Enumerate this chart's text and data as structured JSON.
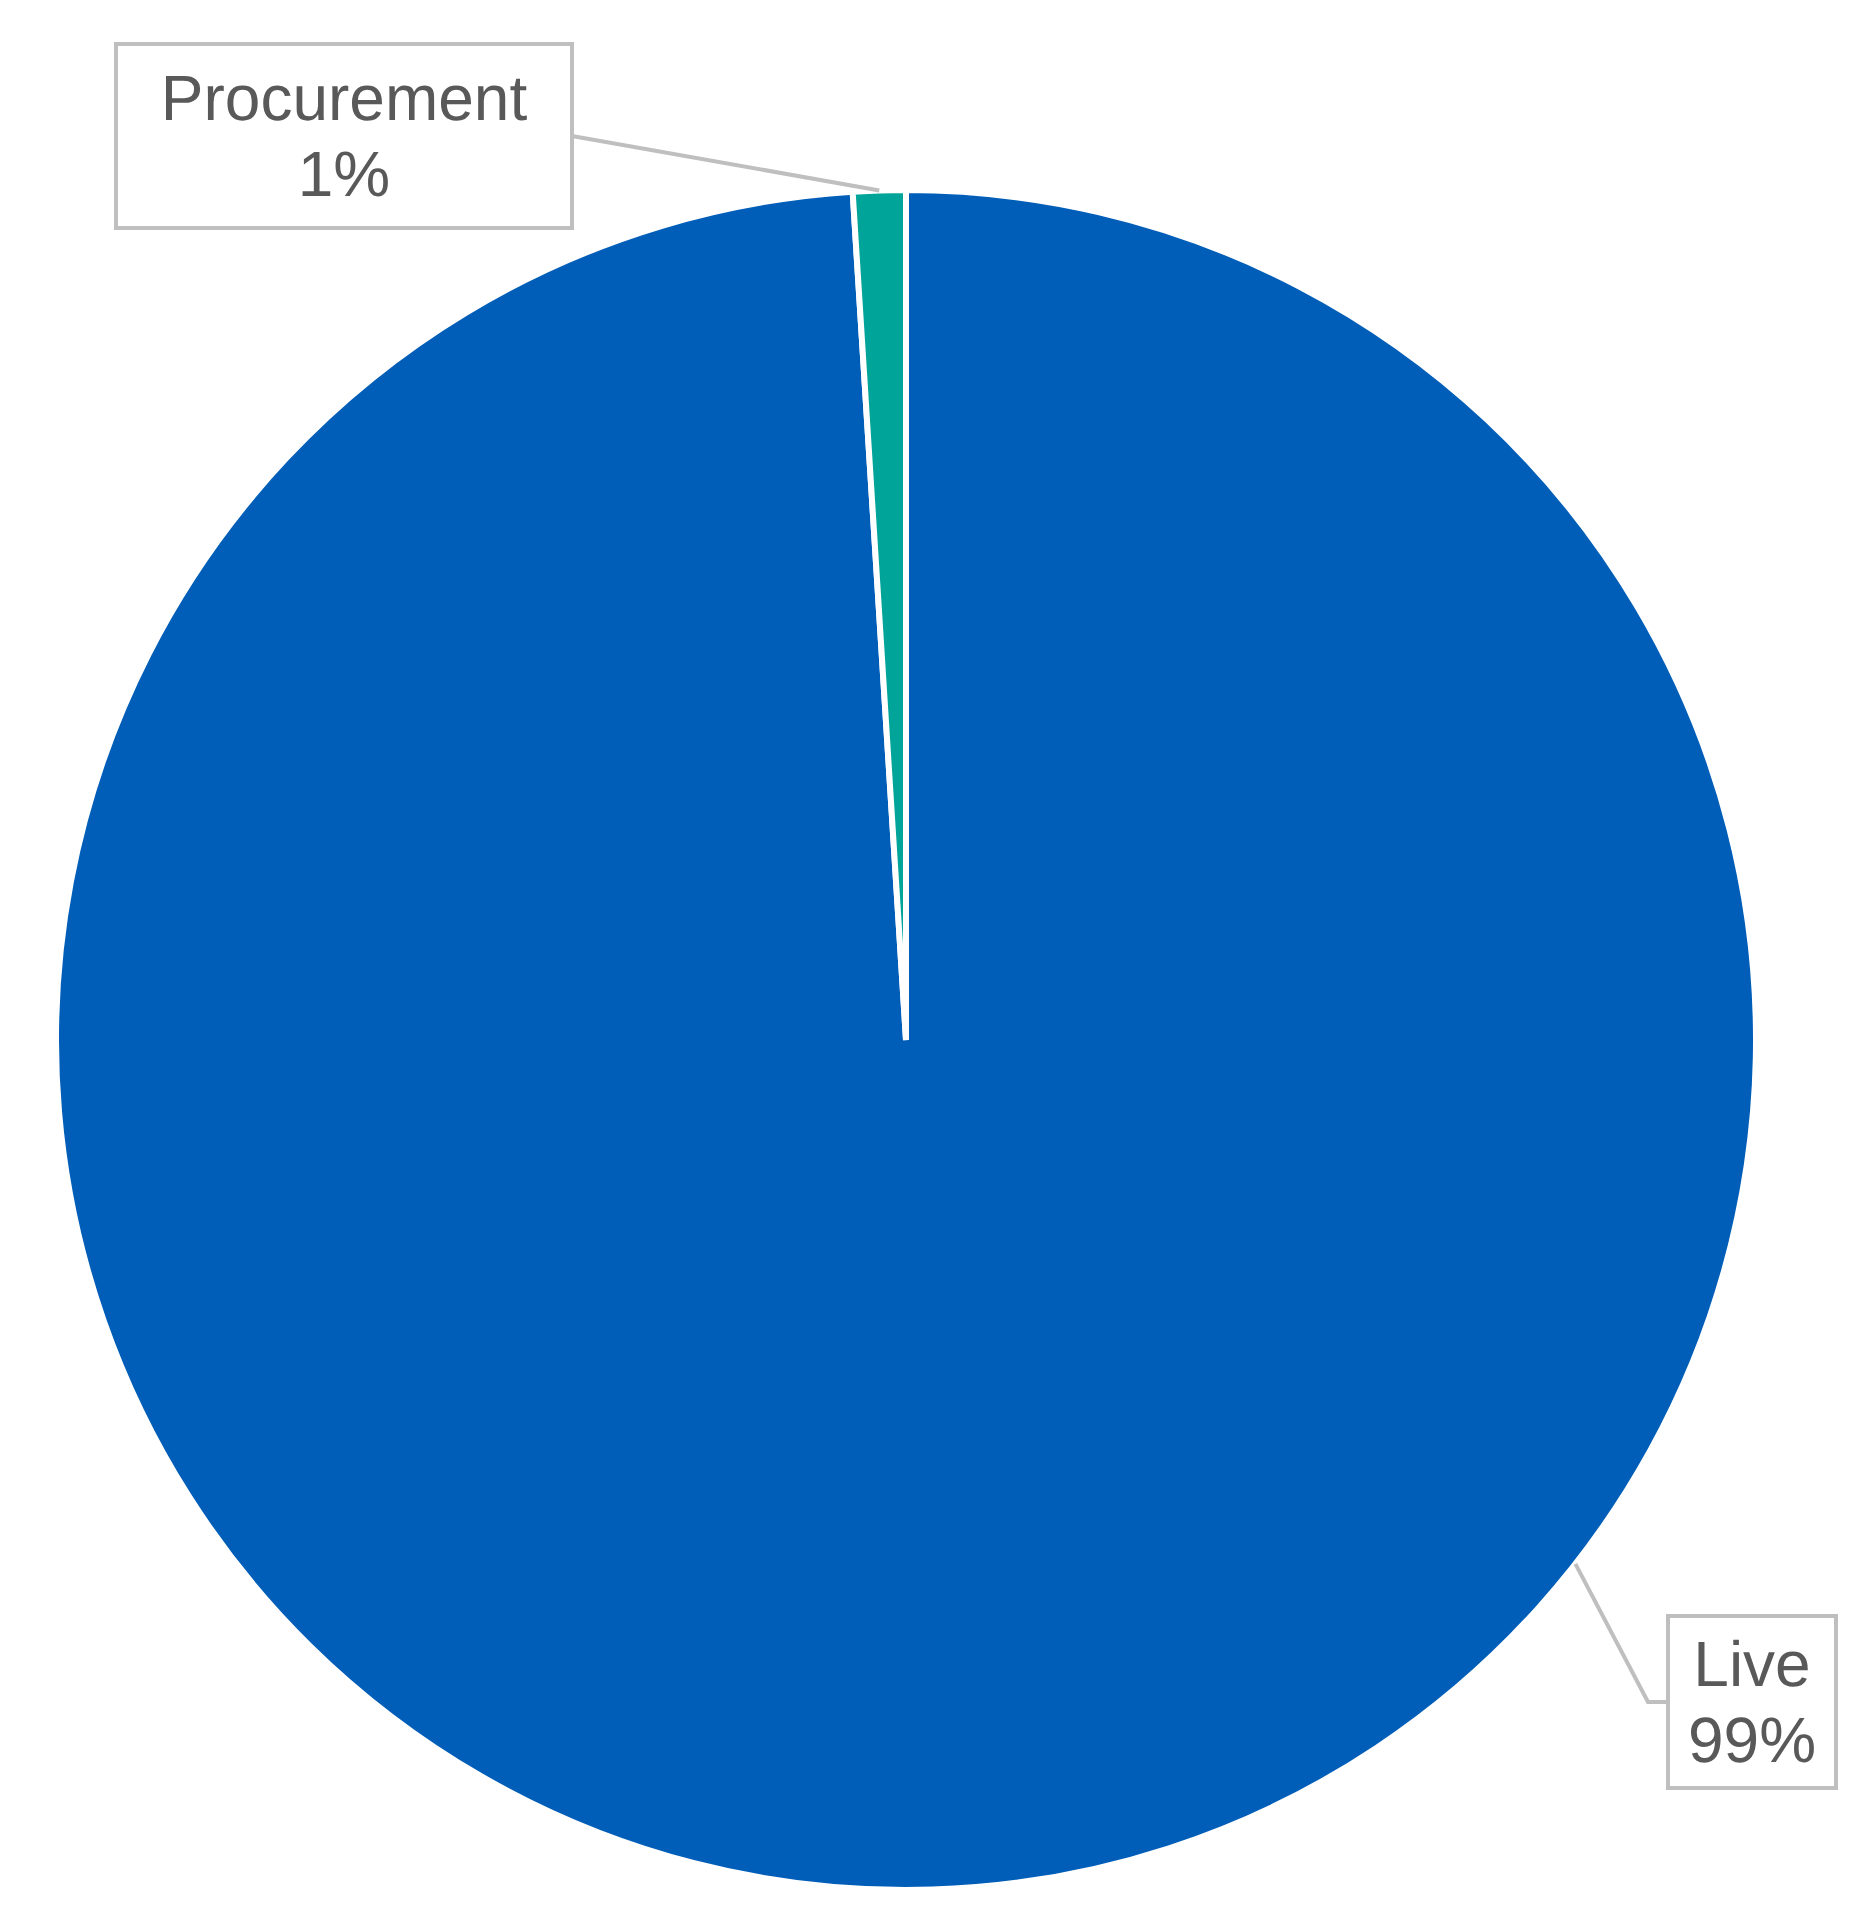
{
  "chart_data": {
    "type": "pie",
    "categories": [
      "Live",
      "Procurement"
    ],
    "values": [
      99,
      1
    ],
    "value_labels": [
      "99%",
      "1%"
    ],
    "colors": [
      "#005eb8",
      "#00a499"
    ]
  }
}
